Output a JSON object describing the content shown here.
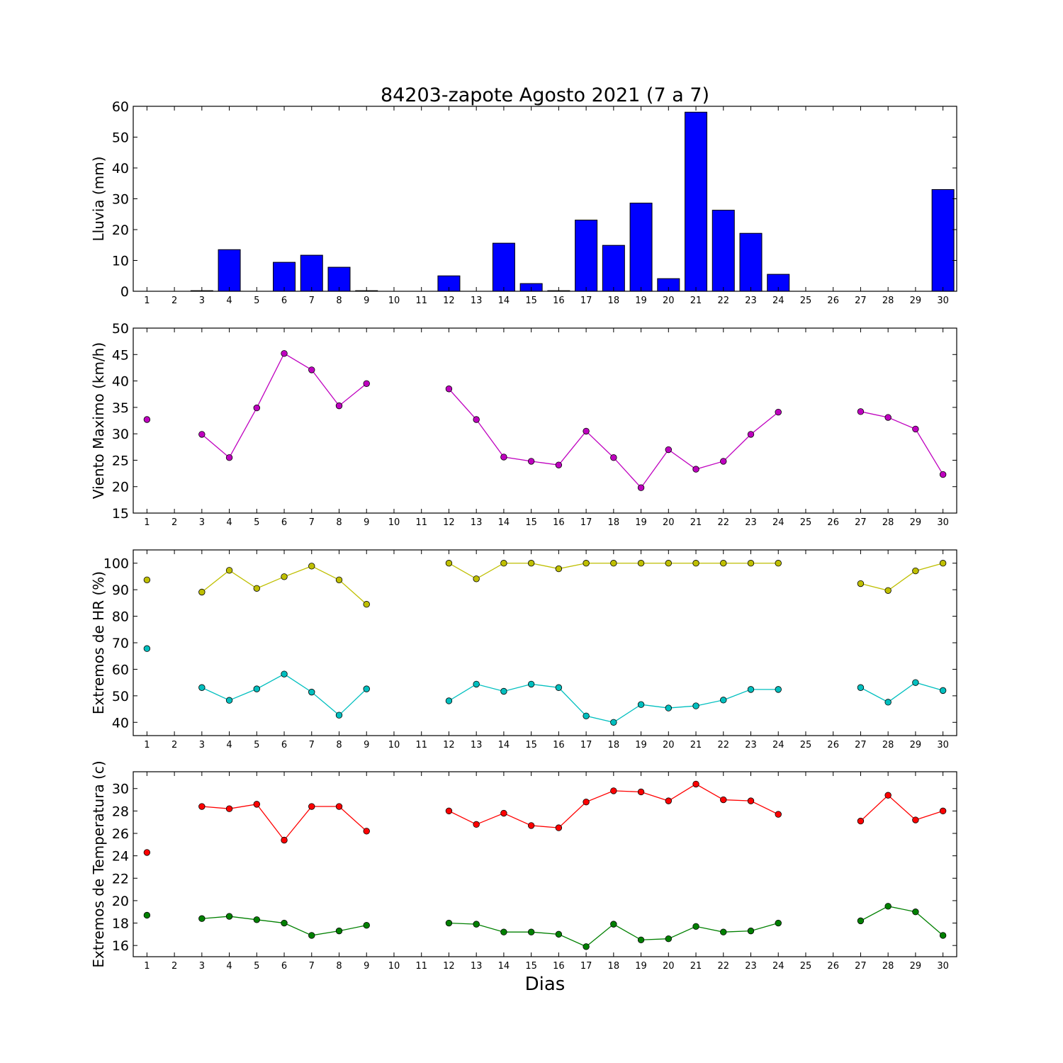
{
  "title": "84203-zapote Agosto 2021  (7 a 7)",
  "xlabel": "Dias",
  "chart_data": [
    {
      "type": "bar",
      "ylabel": "Lluvia (mm)",
      "ylim": [
        0,
        60
      ],
      "yticks": [
        0,
        10,
        20,
        30,
        40,
        50,
        60
      ],
      "x": [
        1,
        2,
        3,
        4,
        5,
        6,
        7,
        8,
        9,
        10,
        11,
        12,
        13,
        14,
        15,
        16,
        17,
        18,
        19,
        20,
        21,
        22,
        23,
        24,
        25,
        26,
        27,
        28,
        29,
        30
      ],
      "xlim": [
        0.5,
        30.5
      ],
      "series": [
        {
          "color": "#0000ff",
          "values": [
            0,
            0,
            0.2,
            13.5,
            0,
            9.4,
            11.7,
            7.8,
            0.2,
            0,
            0,
            5,
            0,
            15.6,
            2.5,
            0.2,
            23.1,
            14.9,
            28.6,
            4.1,
            58.1,
            26.3,
            18.8,
            5.5,
            0,
            0,
            0,
            0,
            0,
            33
          ]
        }
      ]
    },
    {
      "type": "line",
      "ylabel": "Viento Maximo (km/h)",
      "ylim": [
        15,
        50
      ],
      "yticks": [
        15,
        20,
        25,
        30,
        35,
        40,
        45,
        50
      ],
      "x": [
        1,
        2,
        3,
        4,
        5,
        6,
        7,
        8,
        9,
        10,
        11,
        12,
        13,
        14,
        15,
        16,
        17,
        18,
        19,
        20,
        21,
        22,
        23,
        24,
        25,
        26,
        27,
        28,
        29,
        30
      ],
      "xlim": [
        0.5,
        30.5
      ],
      "series": [
        {
          "color": "#bf00bf",
          "values": [
            32.7,
            null,
            29.9,
            25.5,
            34.9,
            45.2,
            42.1,
            35.3,
            39.5,
            null,
            null,
            38.5,
            32.7,
            25.6,
            24.8,
            24.1,
            30.5,
            25.5,
            19.8,
            27.0,
            23.3,
            24.8,
            29.9,
            34.1,
            null,
            null,
            34.2,
            33.1,
            30.9,
            22.3
          ]
        }
      ]
    },
    {
      "type": "line",
      "ylabel": "Extremos de HR (%)",
      "ylim": [
        35,
        105
      ],
      "yticks": [
        40,
        50,
        60,
        70,
        80,
        90,
        100
      ],
      "x": [
        1,
        2,
        3,
        4,
        5,
        6,
        7,
        8,
        9,
        10,
        11,
        12,
        13,
        14,
        15,
        16,
        17,
        18,
        19,
        20,
        21,
        22,
        23,
        24,
        25,
        26,
        27,
        28,
        29,
        30
      ],
      "xlim": [
        0.5,
        30.5
      ],
      "series": [
        {
          "color": "#bfbf00",
          "values": [
            93.7,
            null,
            89.1,
            97.3,
            90.5,
            94.9,
            98.9,
            93.7,
            84.5,
            null,
            null,
            100,
            94.1,
            100,
            100,
            97.9,
            100,
            100,
            100,
            100,
            100,
            100,
            100,
            100,
            null,
            null,
            92.3,
            89.7,
            97.1,
            100
          ]
        },
        {
          "color": "#00bfbf",
          "values": [
            67.8,
            null,
            53.1,
            48.3,
            52.6,
            58.2,
            51.4,
            42.7,
            52.6,
            null,
            null,
            48.1,
            54.4,
            51.7,
            54.4,
            53.1,
            42.4,
            40.0,
            46.7,
            45.4,
            46.2,
            48.4,
            52.4,
            52.4,
            null,
            null,
            53.1,
            47.6,
            55.0,
            52.0
          ]
        }
      ]
    },
    {
      "type": "line",
      "ylabel": "Extremos de Temperatura (c)",
      "ylim": [
        15,
        31.5
      ],
      "yticks": [
        16,
        18,
        20,
        22,
        24,
        26,
        28,
        30
      ],
      "x": [
        1,
        2,
        3,
        4,
        5,
        6,
        7,
        8,
        9,
        10,
        11,
        12,
        13,
        14,
        15,
        16,
        17,
        18,
        19,
        20,
        21,
        22,
        23,
        24,
        25,
        26,
        27,
        28,
        29,
        30
      ],
      "xlim": [
        0.5,
        30.5
      ],
      "series": [
        {
          "color": "#ff0000",
          "values": [
            24.3,
            null,
            28.4,
            28.2,
            28.6,
            25.4,
            28.4,
            28.4,
            26.2,
            null,
            null,
            28.0,
            26.8,
            27.8,
            26.7,
            26.5,
            28.8,
            29.8,
            29.7,
            28.9,
            30.4,
            29.0,
            28.9,
            27.7,
            null,
            null,
            27.1,
            29.4,
            27.2,
            28.0
          ]
        },
        {
          "color": "#008000",
          "values": [
            18.7,
            null,
            18.4,
            18.6,
            18.3,
            18.0,
            16.9,
            17.3,
            17.8,
            null,
            null,
            18.0,
            17.9,
            17.2,
            17.2,
            17.0,
            15.9,
            17.9,
            16.5,
            16.6,
            17.7,
            17.2,
            17.3,
            18.0,
            null,
            null,
            18.2,
            19.5,
            19.0,
            16.9
          ]
        }
      ]
    }
  ]
}
